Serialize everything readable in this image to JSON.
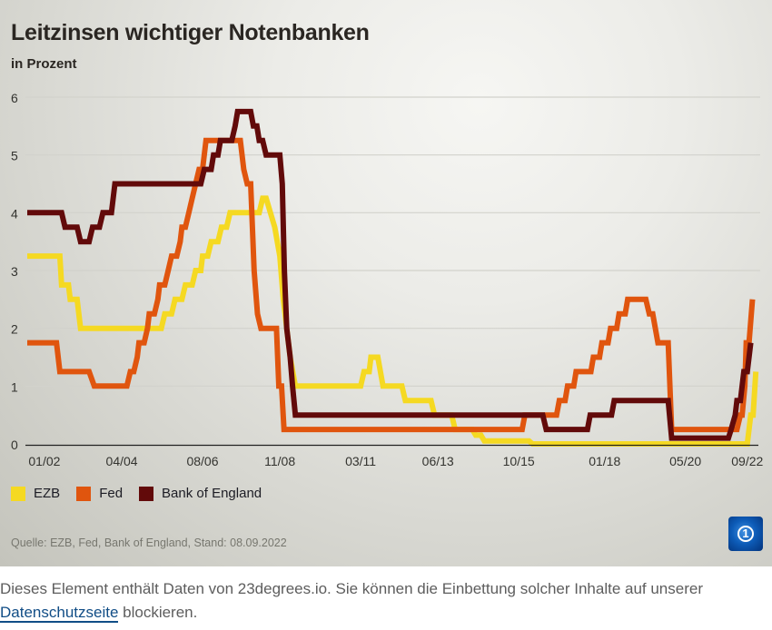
{
  "header": {
    "title": "Leitzinsen wichtiger Notenbanken",
    "subtitle": "in Prozent"
  },
  "legend": [
    {
      "label": "EZB",
      "color": "#f5d922"
    },
    {
      "label": "Fed",
      "color": "#e0550e"
    },
    {
      "label": "Bank of England",
      "color": "#620a0a"
    }
  ],
  "source": "Quelle: EZB, Fed, Bank of England, Stand: 08.09.2022",
  "logo": {
    "icon": "tagesschau-globe-icon"
  },
  "notice": {
    "text_before": "Dieses Element enthält Daten von 23degrees.io. Sie können die Einbettung solcher Inhalte auf unserer ",
    "link_label": "Datenschutzseite",
    "text_after": " blockieren."
  },
  "chart_data": {
    "type": "line",
    "title": "Leitzinsen wichtiger Notenbanken",
    "subtitle": "in Prozent",
    "xlabel": "",
    "ylabel": "in Prozent",
    "ylim": [
      0,
      6
    ],
    "xlim": [
      2001.5,
      2022.72
    ],
    "grid": true,
    "legend_position": "bottom-left",
    "yticks": [
      "0",
      "1",
      "2",
      "3",
      "4",
      "5",
      "6"
    ],
    "xticks": [
      {
        "label": "01/02",
        "t": 2002.0
      },
      {
        "label": "04/04",
        "t": 2004.25
      },
      {
        "label": "08/06",
        "t": 2006.6
      },
      {
        "label": "11/08",
        "t": 2008.85
      },
      {
        "label": "03/11",
        "t": 2011.2
      },
      {
        "label": "06/13",
        "t": 2013.45
      },
      {
        "label": "10/15",
        "t": 2015.8
      },
      {
        "label": "01/18",
        "t": 2018.3
      },
      {
        "label": "05/20",
        "t": 2020.65
      },
      {
        "label": "09/22",
        "t": 2022.45
      }
    ],
    "series": [
      {
        "name": "EZB",
        "color": "#f5d922",
        "points": [
          [
            2001.5,
            3.25
          ],
          [
            2002.45,
            3.25
          ],
          [
            2002.5,
            2.75
          ],
          [
            2002.7,
            2.75
          ],
          [
            2002.75,
            2.5
          ],
          [
            2002.95,
            2.5
          ],
          [
            2003.05,
            2.0
          ],
          [
            2005.4,
            2.0
          ],
          [
            2005.5,
            2.25
          ],
          [
            2005.7,
            2.25
          ],
          [
            2005.8,
            2.5
          ],
          [
            2006.0,
            2.5
          ],
          [
            2006.1,
            2.75
          ],
          [
            2006.3,
            2.75
          ],
          [
            2006.4,
            3.0
          ],
          [
            2006.55,
            3.0
          ],
          [
            2006.6,
            3.25
          ],
          [
            2006.75,
            3.25
          ],
          [
            2006.85,
            3.5
          ],
          [
            2007.05,
            3.5
          ],
          [
            2007.15,
            3.75
          ],
          [
            2007.3,
            3.75
          ],
          [
            2007.4,
            4.0
          ],
          [
            2008.25,
            4.0
          ],
          [
            2008.35,
            4.25
          ],
          [
            2008.45,
            4.25
          ],
          [
            2008.7,
            3.75
          ],
          [
            2008.85,
            3.25
          ],
          [
            2008.95,
            2.5
          ],
          [
            2009.05,
            2.0
          ],
          [
            2009.15,
            1.5
          ],
          [
            2009.3,
            1.0
          ],
          [
            2011.2,
            1.0
          ],
          [
            2011.3,
            1.25
          ],
          [
            2011.45,
            1.25
          ],
          [
            2011.5,
            1.5
          ],
          [
            2011.7,
            1.5
          ],
          [
            2011.85,
            1.0
          ],
          [
            2012.4,
            1.0
          ],
          [
            2012.5,
            0.75
          ],
          [
            2013.25,
            0.75
          ],
          [
            2013.35,
            0.5
          ],
          [
            2013.85,
            0.5
          ],
          [
            2013.95,
            0.25
          ],
          [
            2014.45,
            0.25
          ],
          [
            2014.55,
            0.15
          ],
          [
            2014.7,
            0.15
          ],
          [
            2014.8,
            0.05
          ],
          [
            2016.1,
            0.05
          ],
          [
            2016.2,
            0.0
          ],
          [
            2022.45,
            0.0
          ],
          [
            2022.55,
            0.5
          ],
          [
            2022.62,
            0.5
          ],
          [
            2022.7,
            1.25
          ]
        ]
      },
      {
        "name": "Fed",
        "color": "#e0550e",
        "points": [
          [
            2001.5,
            1.75
          ],
          [
            2002.35,
            1.75
          ],
          [
            2002.45,
            1.25
          ],
          [
            2003.3,
            1.25
          ],
          [
            2003.45,
            1.0
          ],
          [
            2004.4,
            1.0
          ],
          [
            2004.5,
            1.25
          ],
          [
            2004.6,
            1.25
          ],
          [
            2004.7,
            1.5
          ],
          [
            2004.75,
            1.75
          ],
          [
            2004.9,
            1.75
          ],
          [
            2005.0,
            2.0
          ],
          [
            2005.05,
            2.25
          ],
          [
            2005.2,
            2.25
          ],
          [
            2005.3,
            2.5
          ],
          [
            2005.35,
            2.75
          ],
          [
            2005.5,
            2.75
          ],
          [
            2005.6,
            3.0
          ],
          [
            2005.7,
            3.25
          ],
          [
            2005.85,
            3.25
          ],
          [
            2005.95,
            3.5
          ],
          [
            2006.0,
            3.75
          ],
          [
            2006.1,
            3.75
          ],
          [
            2006.2,
            4.0
          ],
          [
            2006.3,
            4.25
          ],
          [
            2006.4,
            4.5
          ],
          [
            2006.5,
            4.75
          ],
          [
            2006.6,
            4.75
          ],
          [
            2006.7,
            5.25
          ],
          [
            2007.7,
            5.25
          ],
          [
            2007.8,
            4.75
          ],
          [
            2007.9,
            4.5
          ],
          [
            2008.0,
            4.5
          ],
          [
            2008.1,
            3.0
          ],
          [
            2008.2,
            2.25
          ],
          [
            2008.3,
            2.0
          ],
          [
            2008.75,
            2.0
          ],
          [
            2008.82,
            1.0
          ],
          [
            2008.9,
            1.0
          ],
          [
            2008.97,
            0.25
          ],
          [
            2015.9,
            0.25
          ],
          [
            2015.98,
            0.5
          ],
          [
            2016.9,
            0.5
          ],
          [
            2016.98,
            0.75
          ],
          [
            2017.15,
            0.75
          ],
          [
            2017.22,
            1.0
          ],
          [
            2017.4,
            1.0
          ],
          [
            2017.47,
            1.25
          ],
          [
            2017.9,
            1.25
          ],
          [
            2017.97,
            1.5
          ],
          [
            2018.15,
            1.5
          ],
          [
            2018.22,
            1.75
          ],
          [
            2018.4,
            1.75
          ],
          [
            2018.47,
            2.0
          ],
          [
            2018.65,
            2.0
          ],
          [
            2018.72,
            2.25
          ],
          [
            2018.9,
            2.25
          ],
          [
            2018.97,
            2.5
          ],
          [
            2019.5,
            2.5
          ],
          [
            2019.6,
            2.25
          ],
          [
            2019.7,
            2.25
          ],
          [
            2019.85,
            1.75
          ],
          [
            2020.15,
            1.75
          ],
          [
            2020.25,
            0.25
          ],
          [
            2022.15,
            0.25
          ],
          [
            2022.25,
            0.5
          ],
          [
            2022.3,
            0.5
          ],
          [
            2022.38,
            1.0
          ],
          [
            2022.42,
            1.75
          ],
          [
            2022.5,
            1.75
          ],
          [
            2022.6,
            2.5
          ]
        ]
      },
      {
        "name": "Bank of England",
        "color": "#620a0a",
        "points": [
          [
            2001.5,
            4.0
          ],
          [
            2002.5,
            4.0
          ],
          [
            2002.6,
            3.75
          ],
          [
            2002.95,
            3.75
          ],
          [
            2003.05,
            3.5
          ],
          [
            2003.3,
            3.5
          ],
          [
            2003.4,
            3.75
          ],
          [
            2003.6,
            3.75
          ],
          [
            2003.7,
            4.0
          ],
          [
            2003.95,
            4.0
          ],
          [
            2004.05,
            4.5
          ],
          [
            2006.55,
            4.5
          ],
          [
            2006.65,
            4.75
          ],
          [
            2006.85,
            4.75
          ],
          [
            2006.92,
            5.0
          ],
          [
            2007.05,
            5.0
          ],
          [
            2007.12,
            5.25
          ],
          [
            2007.45,
            5.25
          ],
          [
            2007.55,
            5.5
          ],
          [
            2007.62,
            5.75
          ],
          [
            2008.0,
            5.75
          ],
          [
            2008.08,
            5.5
          ],
          [
            2008.18,
            5.5
          ],
          [
            2008.25,
            5.25
          ],
          [
            2008.35,
            5.25
          ],
          [
            2008.45,
            5.0
          ],
          [
            2008.85,
            5.0
          ],
          [
            2008.92,
            4.5
          ],
          [
            2008.98,
            3.0
          ],
          [
            2009.05,
            2.0
          ],
          [
            2009.15,
            1.5
          ],
          [
            2009.22,
            1.0
          ],
          [
            2009.3,
            0.5
          ],
          [
            2016.5,
            0.5
          ],
          [
            2016.6,
            0.25
          ],
          [
            2017.8,
            0.25
          ],
          [
            2017.88,
            0.5
          ],
          [
            2018.5,
            0.5
          ],
          [
            2018.58,
            0.75
          ],
          [
            2020.15,
            0.75
          ],
          [
            2020.25,
            0.1
          ],
          [
            2021.9,
            0.1
          ],
          [
            2021.98,
            0.25
          ],
          [
            2022.1,
            0.5
          ],
          [
            2022.15,
            0.75
          ],
          [
            2022.25,
            0.75
          ],
          [
            2022.35,
            1.25
          ],
          [
            2022.45,
            1.25
          ],
          [
            2022.55,
            1.75
          ]
        ]
      }
    ]
  }
}
